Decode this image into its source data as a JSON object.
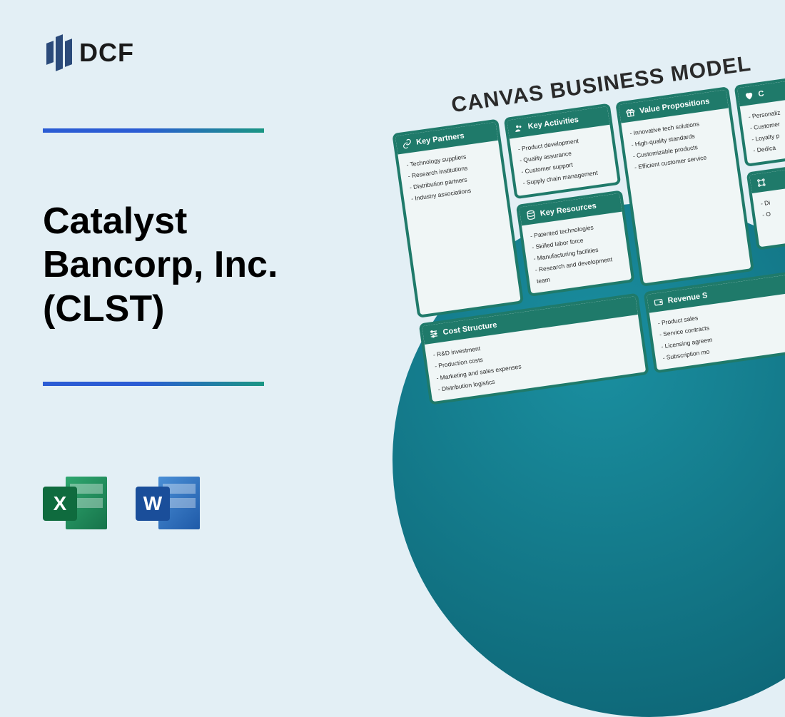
{
  "brand": {
    "name": "DCF"
  },
  "title": "Catalyst Bancorp, Inc. (CLST)",
  "icons": {
    "excel": {
      "letter": "X"
    },
    "word": {
      "letter": "W"
    }
  },
  "colors": {
    "background": "#e3eff5",
    "circle_start": "#1a8fa0",
    "circle_end": "#0b5e6e",
    "divider_start": "#2b5cd4",
    "divider_end": "#1a9683",
    "canvas_border": "#1f7a6a",
    "canvas_header": "#1f7a6a",
    "canvas_body_bg": "#f0f6f6",
    "excel_badge": "#0f6b3e",
    "word_badge": "#1a4e9a"
  },
  "canvas": {
    "title": "CANVAS BUSINESS MODEL",
    "cards": {
      "key_partners": {
        "title": "Key Partners",
        "items": [
          "Technology suppliers",
          "Research institutions",
          "Distribution partners",
          "Industry associations"
        ]
      },
      "key_activities": {
        "title": "Key Activities",
        "items": [
          "Product development",
          "Quality assurance",
          "Customer support",
          "Supply chain management"
        ]
      },
      "key_resources": {
        "title": "Key Resources",
        "items": [
          "Patented technologies",
          "Skilled labor force",
          "Manufacturing facilities",
          "Research and development team"
        ]
      },
      "value_propositions": {
        "title": "Value Propositions",
        "items": [
          "Innovative tech solutions",
          "High-quality standards",
          "Customizable products",
          "Efficient customer service"
        ]
      },
      "customer_relationships": {
        "title": "C",
        "items": [
          "Personaliz",
          "Customer",
          "Loyalty p",
          "Dedica"
        ]
      },
      "channels": {
        "title": "",
        "items": [
          "Di",
          "O"
        ]
      },
      "cost_structure": {
        "title": "Cost Structure",
        "items": [
          "R&D investment",
          "Production costs",
          "Marketing and sales expenses",
          "Distribution logistics"
        ]
      },
      "revenue_streams": {
        "title": "Revenue S",
        "items": [
          "Product sales",
          "Service contracts",
          "Licensing agreem",
          "Subscription mo"
        ]
      }
    }
  }
}
